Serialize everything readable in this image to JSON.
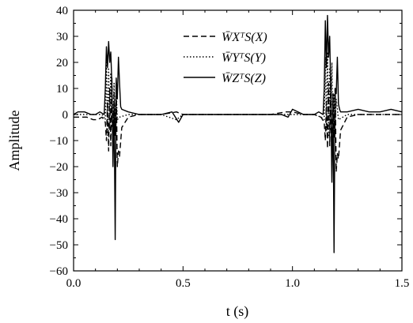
{
  "chart_data": {
    "type": "line",
    "xlabel": "t (s)",
    "ylabel": "Amplitude",
    "xlim": [
      0.0,
      1.5
    ],
    "ylim": [
      -60,
      40
    ],
    "xticks": [
      "0.0",
      "0.5",
      "1.0",
      "1.5"
    ],
    "yticks": [
      "40",
      "30",
      "20",
      "10",
      "0",
      "−10",
      "−20",
      "−30",
      "−40",
      "−50",
      "−60"
    ],
    "legend_position": "top-center",
    "grid": false,
    "series": [
      {
        "name": "W̄XᵀS(X)",
        "style": "dashed",
        "x": [
          0.0,
          0.03,
          0.06,
          0.09,
          0.11,
          0.13,
          0.145,
          0.15,
          0.155,
          0.16,
          0.165,
          0.17,
          0.175,
          0.18,
          0.185,
          0.19,
          0.195,
          0.2,
          0.205,
          0.21,
          0.22,
          0.25,
          0.3,
          0.4,
          0.47,
          0.5,
          0.6,
          0.7,
          0.8,
          0.9,
          0.97,
          1.0,
          1.05,
          1.1,
          1.13,
          1.145,
          1.15,
          1.155,
          1.16,
          1.165,
          1.17,
          1.175,
          1.18,
          1.185,
          1.19,
          1.195,
          1.2,
          1.205,
          1.21,
          1.22,
          1.25,
          1.3,
          1.4,
          1.5
        ],
        "y": [
          -1,
          -1,
          -1,
          -2,
          -2,
          -1,
          -3,
          -10,
          5,
          -14,
          10,
          -12,
          14,
          -15,
          9,
          -8,
          12,
          -20,
          -14,
          -16,
          -5,
          -1,
          0,
          0,
          1,
          0,
          0,
          0,
          0,
          0,
          1,
          1,
          0,
          0,
          -1,
          -3,
          -10,
          5,
          -13,
          12,
          -12,
          14,
          -16,
          8,
          -9,
          10,
          -22,
          -15,
          -17,
          -6,
          -1,
          0,
          0,
          0
        ]
      },
      {
        "name": "W̄YᵀS(Y)",
        "style": "dotted",
        "x": [
          0.0,
          0.05,
          0.1,
          0.13,
          0.145,
          0.15,
          0.155,
          0.16,
          0.165,
          0.17,
          0.175,
          0.18,
          0.185,
          0.19,
          0.195,
          0.2,
          0.21,
          0.25,
          0.3,
          0.4,
          0.47,
          0.5,
          0.6,
          0.8,
          0.97,
          1.0,
          1.05,
          1.1,
          1.13,
          1.145,
          1.15,
          1.155,
          1.16,
          1.165,
          1.17,
          1.175,
          1.18,
          1.185,
          1.19,
          1.195,
          1.2,
          1.21,
          1.25,
          1.3,
          1.4,
          1.5
        ],
        "y": [
          0,
          0,
          0,
          0,
          -2,
          20,
          -8,
          18,
          -6,
          16,
          -5,
          -3,
          12,
          -6,
          10,
          -2,
          -1,
          0,
          0,
          0,
          -2,
          0,
          0,
          0,
          0,
          0,
          0,
          0,
          -1,
          -2,
          22,
          -6,
          24,
          -8,
          18,
          -6,
          20,
          -12,
          8,
          -4,
          6,
          -2,
          0,
          0,
          0,
          0
        ]
      },
      {
        "name": "W̄ZᵀS(Z)",
        "style": "solid",
        "x": [
          0.0,
          0.02,
          0.05,
          0.08,
          0.1,
          0.12,
          0.14,
          0.145,
          0.15,
          0.155,
          0.16,
          0.165,
          0.17,
          0.175,
          0.18,
          0.185,
          0.19,
          0.195,
          0.2,
          0.205,
          0.21,
          0.215,
          0.22,
          0.25,
          0.3,
          0.4,
          0.45,
          0.48,
          0.5,
          0.6,
          0.7,
          0.8,
          0.9,
          0.95,
          0.98,
          1.0,
          1.05,
          1.1,
          1.12,
          1.14,
          1.145,
          1.15,
          1.155,
          1.16,
          1.165,
          1.17,
          1.175,
          1.18,
          1.185,
          1.19,
          1.195,
          1.2,
          1.205,
          1.21,
          1.215,
          1.22,
          1.25,
          1.3,
          1.35,
          1.4,
          1.45,
          1.5
        ],
        "y": [
          0,
          1,
          1,
          0,
          0,
          1,
          0,
          10,
          26,
          18,
          28,
          20,
          24,
          12,
          -20,
          4,
          -48,
          14,
          6,
          22,
          12,
          3,
          2,
          1,
          0,
          0,
          1,
          -3,
          0,
          0,
          0,
          0,
          0,
          0,
          -1,
          2,
          0,
          0,
          1,
          0,
          10,
          36,
          18,
          38,
          22,
          30,
          8,
          -26,
          6,
          -53,
          10,
          8,
          22,
          4,
          2,
          1,
          1,
          2,
          1,
          1,
          2,
          1
        ]
      }
    ]
  }
}
